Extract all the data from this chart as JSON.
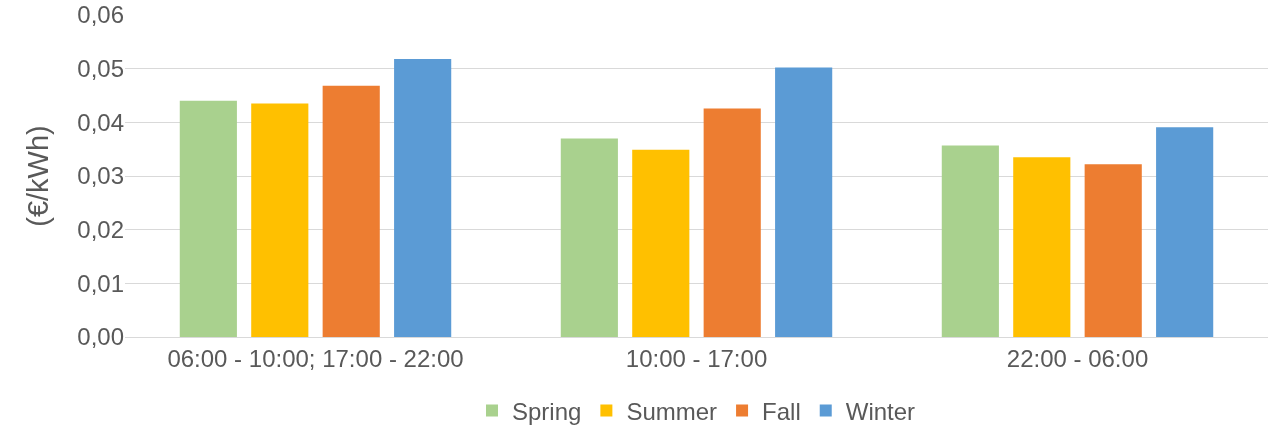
{
  "chart_data": {
    "type": "bar",
    "ylabel": "(€/kWh)",
    "categories": [
      "06:00 - 10:00; 17:00 - 22:00",
      "10:00 - 17:00",
      "22:00 - 06:00"
    ],
    "series": [
      {
        "name": "Spring",
        "color": "#a9d18e",
        "values": [
          0.044,
          0.037,
          0.0357
        ]
      },
      {
        "name": "Summer",
        "color": "#ffc000",
        "values": [
          0.0435,
          0.0349,
          0.0335
        ]
      },
      {
        "name": "Fall",
        "color": "#ed7d31",
        "values": [
          0.0468,
          0.0426,
          0.0322
        ]
      },
      {
        "name": "Winter",
        "color": "#5b9bd5",
        "values": [
          0.0518,
          0.0502,
          0.0391
        ]
      }
    ],
    "ylim": [
      0,
      0.06
    ],
    "yticks": [
      {
        "value": 0,
        "label": "0,00"
      },
      {
        "value": 0.01,
        "label": "0,01"
      },
      {
        "value": 0.02,
        "label": "0,02"
      },
      {
        "value": 0.03,
        "label": "0,03"
      },
      {
        "value": 0.04,
        "label": "0,04"
      },
      {
        "value": 0.05,
        "label": "0,05"
      },
      {
        "value": 0.06,
        "label": "0,06"
      }
    ],
    "grid": "y",
    "legend": "bottom"
  }
}
